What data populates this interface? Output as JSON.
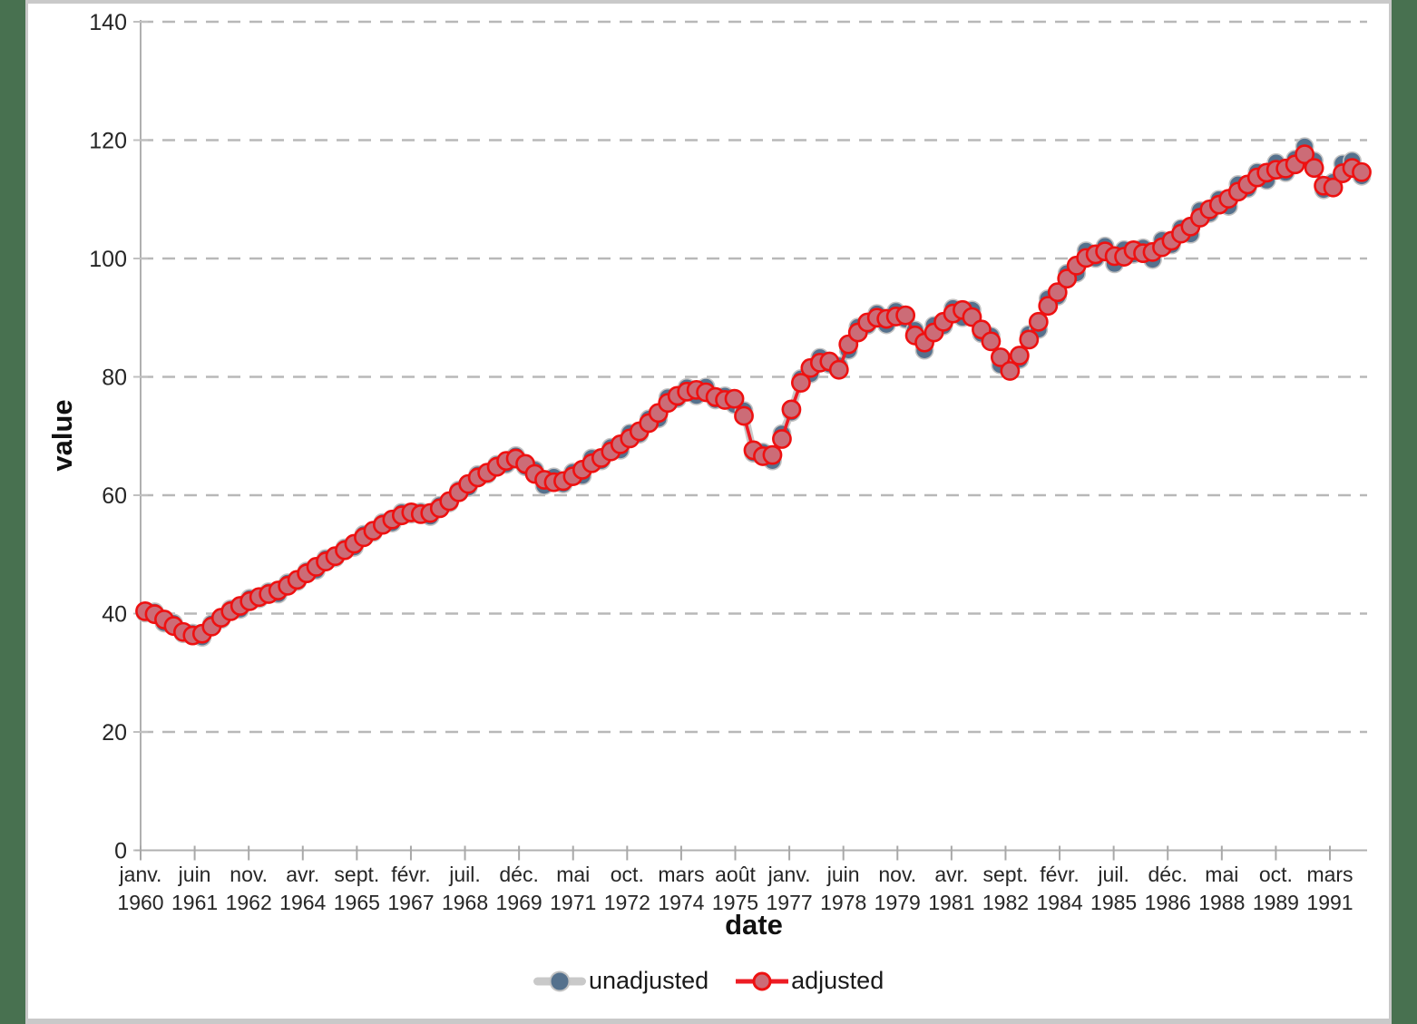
{
  "figure": {
    "ylabel": "value",
    "xlabel": "date",
    "plot_bg": "#ffffff",
    "frame_green": "#487150",
    "frame_gray": "#c9c9c9",
    "grid_color": "#b8b8b8",
    "axis_color": "#b0b0b0",
    "tick_label_color": "#262626",
    "title_color": "#111111"
  },
  "legend": {
    "items": [
      {
        "label": "unadjusted",
        "line_color": "#c9c9c9",
        "marker_fill": "#55718d",
        "marker_stroke": "#c2c2c2"
      },
      {
        "label": "adjusted",
        "line_color": "#ed1c24",
        "marker_fill": "#cc6c77",
        "marker_stroke": "#ee1111"
      }
    ]
  },
  "chart_data": {
    "type": "line",
    "title": "",
    "xlabel": "date",
    "ylabel": "value",
    "ylim": [
      0,
      140
    ],
    "y_ticks": [
      0,
      20,
      40,
      60,
      80,
      100,
      120,
      140
    ],
    "grid": "horizontal-dashed",
    "legend_position": "bottom-center",
    "frequency": "quarterly",
    "x_start": "1960Q1",
    "x_end": "1992Q1",
    "x_tick_labels": [
      {
        "month": "janv.",
        "year": "1960"
      },
      {
        "month": "juin",
        "year": "1961"
      },
      {
        "month": "nov.",
        "year": "1962"
      },
      {
        "month": "avr.",
        "year": "1964"
      },
      {
        "month": "sept.",
        "year": "1965"
      },
      {
        "month": "févr.",
        "year": "1967"
      },
      {
        "month": "juil.",
        "year": "1968"
      },
      {
        "month": "déc.",
        "year": "1969"
      },
      {
        "month": "mai",
        "year": "1971"
      },
      {
        "month": "oct.",
        "year": "1972"
      },
      {
        "month": "mars",
        "year": "1974"
      },
      {
        "month": "août",
        "year": "1975"
      },
      {
        "month": "janv.",
        "year": "1977"
      },
      {
        "month": "juin",
        "year": "1978"
      },
      {
        "month": "nov.",
        "year": "1979"
      },
      {
        "month": "avr.",
        "year": "1981"
      },
      {
        "month": "sept.",
        "year": "1982"
      },
      {
        "month": "févr.",
        "year": "1984"
      },
      {
        "month": "juil.",
        "year": "1985"
      },
      {
        "month": "déc.",
        "year": "1986"
      },
      {
        "month": "mai",
        "year": "1988"
      },
      {
        "month": "oct.",
        "year": "1989"
      },
      {
        "month": "mars",
        "year": "1991"
      }
    ],
    "series": [
      {
        "name": "unadjusted",
        "values": [
          40.1,
          40.3,
          38.4,
          38.4,
          36.6,
          36.7,
          36.0,
          38.3,
          39.0,
          40.8,
          40.7,
          42.6,
          42.5,
          43.7,
          43.3,
          45.2,
          45.4,
          47.2,
          47.3,
          49.3,
          49.4,
          51.1,
          51.2,
          53.4,
          53.7,
          55.4,
          55.3,
          57.1,
          56.8,
          57.2,
          56.4,
          58.3,
          58.7,
          60.9,
          61.3,
          63.5,
          63.5,
          65.2,
          65.2,
          66.7,
          64.8,
          64.3,
          61.6,
          63.1,
          61.9,
          63.9,
          63.3,
          66.3,
          65.8,
          68.1,
          67.6,
          70.5,
          70.3,
          72.9,
          72.9,
          76.5,
          76.3,
          78.2,
          76.8,
          78.3,
          76.1,
          76.8,
          75.3,
          74.3,
          67.1,
          67.3,
          65.8,
          70.4,
          74.0,
          79.7,
          80.5,
          83.3,
          82.1,
          81.9,
          84.5,
          88.4,
          88.7,
          90.7,
          88.8,
          91.1,
          89.7,
          87.9,
          84.5,
          88.7,
          88.6,
          91.6,
          90.0,
          91.3,
          87.3,
          86.9,
          82.0,
          82.2,
          82.9,
          87.2,
          88.0,
          93.2,
          93.6,
          97.5,
          97.5,
          101.3,
          100.0,
          102.1,
          99.1,
          101.5,
          100.7,
          101.8,
          99.8,
          103.1,
          102.3,
          105.1,
          104.1,
          108.1,
          107.6,
          110.0,
          108.8,
          112.5,
          111.8,
          114.6,
          113.2,
          116.2,
          114.5,
          116.8,
          118.9,
          116.5,
          111.6,
          112.9,
          116.0,
          116.5,
          113.9
        ]
      },
      {
        "name": "adjusted",
        "values": [
          40.4,
          39.9,
          39.0,
          37.9,
          36.9,
          36.3,
          36.6,
          37.8,
          39.3,
          40.4,
          41.3,
          42.1,
          42.8,
          43.3,
          43.9,
          44.7,
          45.7,
          46.8,
          47.9,
          48.8,
          49.7,
          50.7,
          51.8,
          52.9,
          54.0,
          55.0,
          55.9,
          56.6,
          57.1,
          56.8,
          57.0,
          57.8,
          59.0,
          60.5,
          61.9,
          63.0,
          63.8,
          64.8,
          65.8,
          66.2,
          65.3,
          63.6,
          62.6,
          62.2,
          62.4,
          63.2,
          64.3,
          65.4,
          66.3,
          67.4,
          68.6,
          69.6,
          70.8,
          72.2,
          73.9,
          75.6,
          76.8,
          77.5,
          77.8,
          77.4,
          76.6,
          76.1,
          76.3,
          73.4,
          67.6,
          66.6,
          66.8,
          69.5,
          74.5,
          79.0,
          81.5,
          82.4,
          82.6,
          81.2,
          85.5,
          87.5,
          89.2,
          90.0,
          89.8,
          90.2,
          90.4,
          87.0,
          85.8,
          87.5,
          89.3,
          90.7,
          91.3,
          90.1,
          88.0,
          86.0,
          83.3,
          81.0,
          83.6,
          86.3,
          89.3,
          92.0,
          94.3,
          96.6,
          98.8,
          100.1,
          100.7,
          101.2,
          100.4,
          100.3,
          101.4,
          100.9,
          101.1,
          101.9,
          103.0,
          104.2,
          105.4,
          106.9,
          108.3,
          109.1,
          110.1,
          111.3,
          112.5,
          113.7,
          114.5,
          115.0,
          115.2,
          115.9,
          117.6,
          115.3,
          112.3,
          112.0,
          114.4,
          115.3,
          114.6
        ]
      }
    ]
  }
}
